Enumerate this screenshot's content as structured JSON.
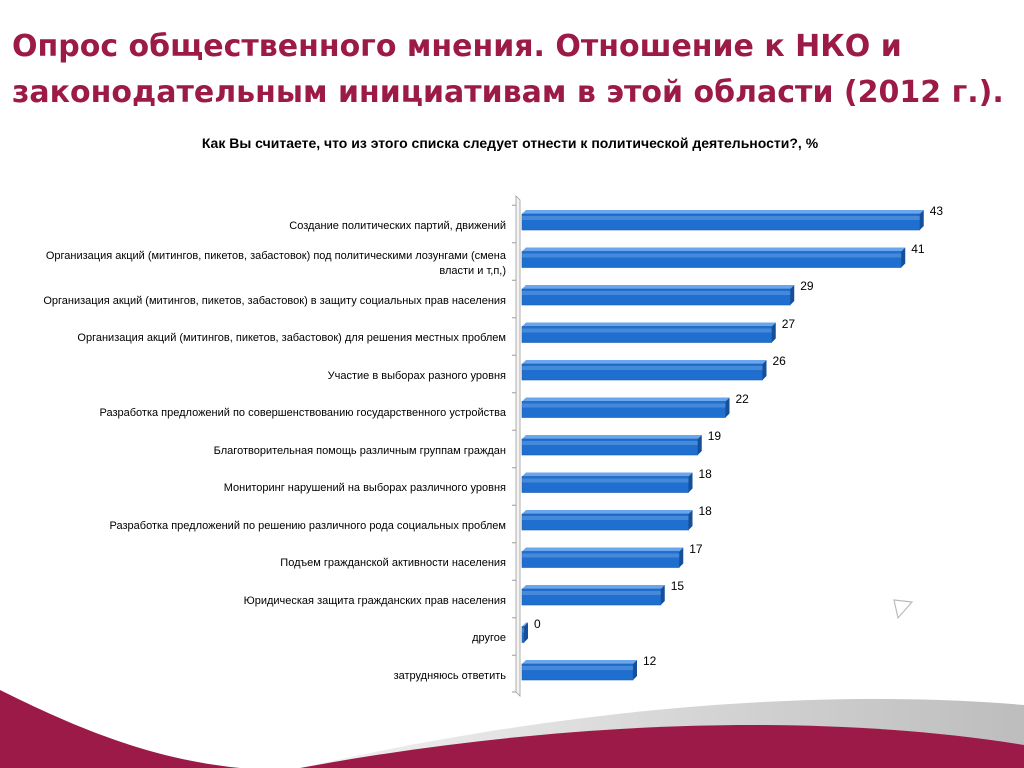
{
  "slide": {
    "title": "Опрос общественного мнения. Отношение к НКО и законодательным инициативам в этой области (2012 г.).",
    "accent_color": "#9c1a47",
    "bar_color": "#1f6fd1"
  },
  "chart_data": {
    "type": "bar",
    "orientation": "horizontal",
    "title": "Как Вы считаете, что из этого списка следует отнести к политической деятельности?, %",
    "xlabel": "",
    "ylabel": "",
    "xlim": [
      0,
      45
    ],
    "grid": false,
    "legend": "none",
    "categories": [
      "Создание политических партий, движений",
      "Организация акций (митингов, пикетов, забастовок) под политическими лозунгами (смена власти и т,п,)",
      "Организация акций (митингов, пикетов, забастовок) в защиту социальных прав населения",
      "Организация акций (митингов, пикетов, забастовок) для решения местных проблем",
      "Участие в выборах разного уровня",
      "Разработка предложений по совершенствованию государственного устройства",
      "Благотворительная помощь различным группам граждан",
      "Мониторинг нарушений на выборах различного уровня",
      "Разработка предложений по решению различного рода социальных проблем",
      "Подъем гражданской активности населения",
      "Юридическая защита гражданских прав населения",
      "другое",
      "затрудняюсь ответить"
    ],
    "values": [
      43,
      41,
      29,
      27,
      26,
      22,
      19,
      18,
      18,
      17,
      15,
      0,
      12
    ]
  }
}
